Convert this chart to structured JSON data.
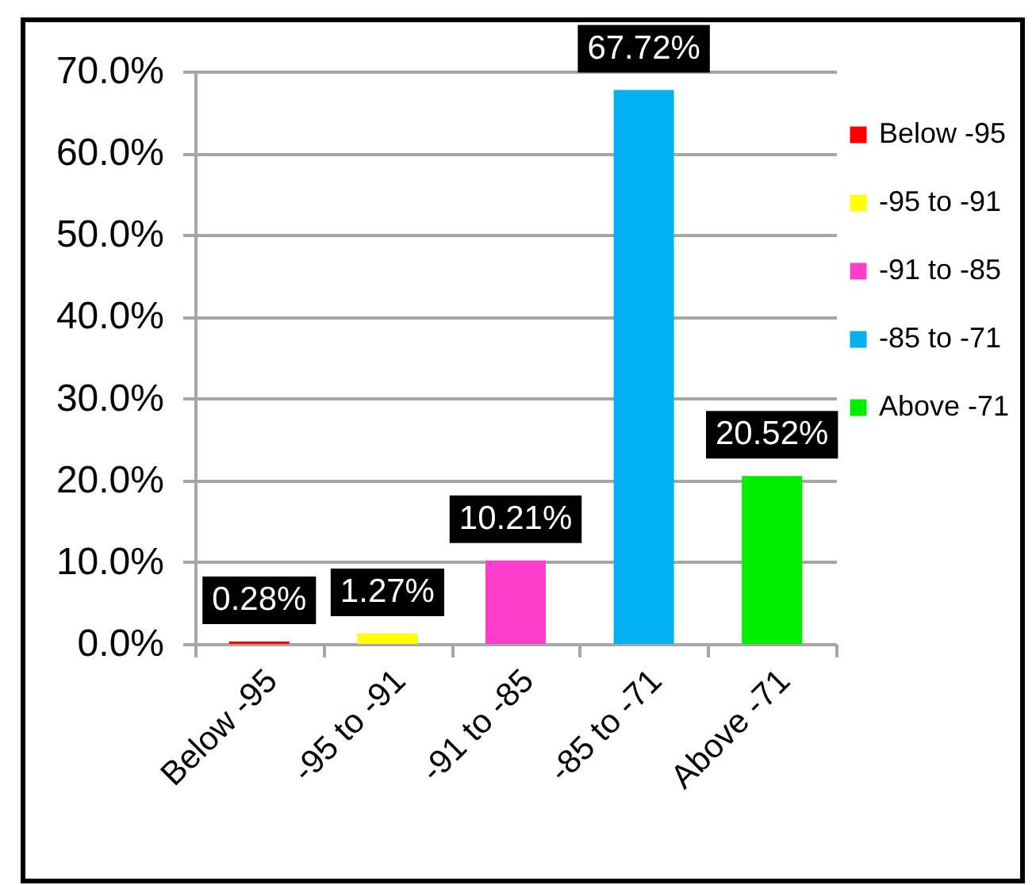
{
  "chart_data": {
    "type": "bar",
    "stacked": true,
    "categories": [
      "Below -95",
      "-95 to -91",
      "-91 to -85",
      "-85 to -71",
      "Above -71"
    ],
    "series": [
      {
        "name": "Below -95",
        "color": "#ff0000",
        "values": [
          0.28,
          null,
          null,
          null,
          null
        ],
        "value_labels": [
          "0.28%",
          null,
          null,
          null,
          null
        ]
      },
      {
        "name": "-95 to -91",
        "color": "#ffff00",
        "values": [
          null,
          1.27,
          null,
          null,
          null
        ],
        "value_labels": [
          null,
          "1.27%",
          null,
          null,
          null
        ]
      },
      {
        "name": "-91 to -85",
        "color": "#ff3fcc",
        "values": [
          null,
          null,
          10.21,
          null,
          null
        ],
        "value_labels": [
          null,
          null,
          "10.21%",
          null,
          null
        ]
      },
      {
        "name": "-85 to -71",
        "color": "#00b0f0",
        "values": [
          null,
          null,
          null,
          67.72,
          null
        ],
        "value_labels": [
          null,
          null,
          null,
          "67.72%",
          null
        ]
      },
      {
        "name": "Above -71",
        "color": "#00ee00",
        "values": [
          null,
          null,
          null,
          null,
          20.52
        ],
        "value_labels": [
          null,
          null,
          null,
          null,
          "20.52%"
        ]
      }
    ],
    "ylim": [
      0,
      70
    ],
    "yticks": [
      {
        "value": 0,
        "label": "0.0%"
      },
      {
        "value": 10,
        "label": "10.0%"
      },
      {
        "value": 20,
        "label": "20.0%"
      },
      {
        "value": 30,
        "label": "30.0%"
      },
      {
        "value": 40,
        "label": "40.0%"
      },
      {
        "value": 50,
        "label": "50.0%"
      },
      {
        "value": 60,
        "label": "60.0%"
      },
      {
        "value": 70,
        "label": "70.0%"
      }
    ],
    "grid": "y",
    "legend": "right"
  }
}
